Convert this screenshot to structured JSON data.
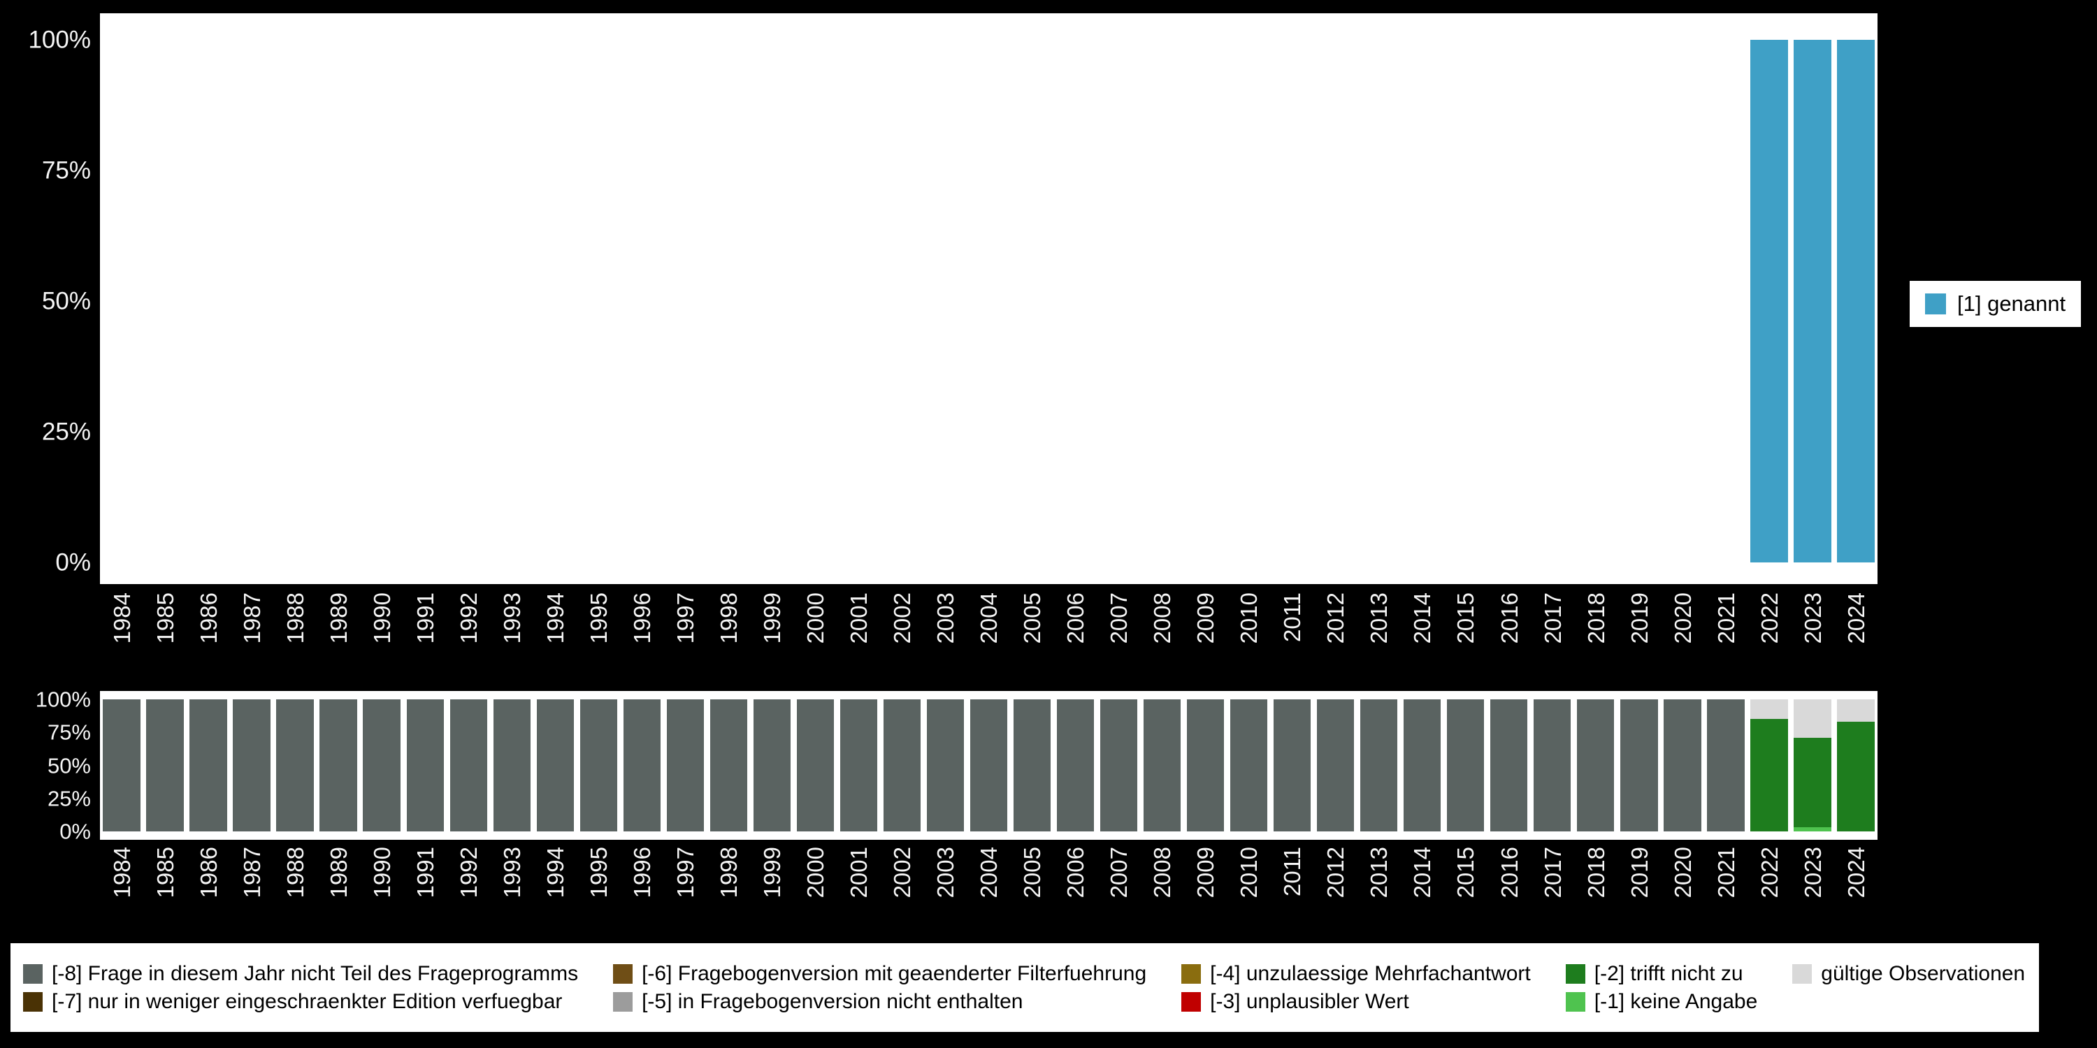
{
  "page": {
    "background": "#000000",
    "panel_background": "#FFFFFF",
    "axis_text_color": "#F5F5F5"
  },
  "chart_data": [
    {
      "type": "bar",
      "stacked": true,
      "unit": "percent",
      "title": "",
      "xlabel": "",
      "ylabel": "",
      "ylim": [
        0,
        100
      ],
      "grid": false,
      "legend_position": "right",
      "yticks": [
        "100%",
        "75%",
        "50%",
        "25%",
        "0%"
      ],
      "x": [
        1984,
        1985,
        1986,
        1987,
        1988,
        1989,
        1990,
        1991,
        1992,
        1993,
        1994,
        1995,
        1996,
        1997,
        1998,
        1999,
        2000,
        2001,
        2002,
        2003,
        2004,
        2005,
        2006,
        2007,
        2008,
        2009,
        2010,
        2011,
        2012,
        2013,
        2014,
        2015,
        2016,
        2017,
        2018,
        2019,
        2020,
        2021,
        2022,
        2023,
        2024
      ],
      "series": [
        {
          "name": "[1] genannt",
          "color": "#3FA0C6",
          "values": [
            0,
            0,
            0,
            0,
            0,
            0,
            0,
            0,
            0,
            0,
            0,
            0,
            0,
            0,
            0,
            0,
            0,
            0,
            0,
            0,
            0,
            0,
            0,
            0,
            0,
            0,
            0,
            0,
            0,
            0,
            0,
            0,
            0,
            0,
            0,
            0,
            0,
            0,
            100,
            100,
            100
          ]
        }
      ]
    },
    {
      "type": "bar",
      "stacked": true,
      "unit": "percent",
      "title": "",
      "xlabel": "",
      "ylabel": "",
      "ylim": [
        0,
        100
      ],
      "grid": false,
      "legend_position": "bottom",
      "yticks": [
        "100%",
        "75%",
        "50%",
        "25%",
        "0%"
      ],
      "x": [
        1984,
        1985,
        1986,
        1987,
        1988,
        1989,
        1990,
        1991,
        1992,
        1993,
        1994,
        1995,
        1996,
        1997,
        1998,
        1999,
        2000,
        2001,
        2002,
        2003,
        2004,
        2005,
        2006,
        2007,
        2008,
        2009,
        2010,
        2011,
        2012,
        2013,
        2014,
        2015,
        2016,
        2017,
        2018,
        2019,
        2020,
        2021,
        2022,
        2023,
        2024
      ],
      "series": [
        {
          "name": "[-8] Frage in diesem Jahr nicht Teil des Frageprogramms",
          "color": "#5A6361",
          "values": [
            100,
            100,
            100,
            100,
            100,
            100,
            100,
            100,
            100,
            100,
            100,
            100,
            100,
            100,
            100,
            100,
            100,
            100,
            100,
            100,
            100,
            100,
            100,
            100,
            100,
            100,
            100,
            100,
            100,
            100,
            100,
            100,
            100,
            100,
            100,
            100,
            100,
            100,
            0,
            0,
            0
          ]
        },
        {
          "name": "[-1] keine Angabe",
          "color": "#4FC34F",
          "values": [
            0,
            0,
            0,
            0,
            0,
            0,
            0,
            0,
            0,
            0,
            0,
            0,
            0,
            0,
            0,
            0,
            0,
            0,
            0,
            0,
            0,
            0,
            0,
            0,
            0,
            0,
            0,
            0,
            0,
            0,
            0,
            0,
            0,
            0,
            0,
            0,
            0,
            0,
            0,
            3,
            0
          ]
        },
        {
          "name": "[-2] trifft nicht zu",
          "color": "#1E7D1E",
          "values": [
            0,
            0,
            0,
            0,
            0,
            0,
            0,
            0,
            0,
            0,
            0,
            0,
            0,
            0,
            0,
            0,
            0,
            0,
            0,
            0,
            0,
            0,
            0,
            0,
            0,
            0,
            0,
            0,
            0,
            0,
            0,
            0,
            0,
            0,
            0,
            0,
            0,
            0,
            85,
            68,
            83
          ]
        },
        {
          "name": "gültige Observationen",
          "color": "#D9D9D9",
          "values": [
            0,
            0,
            0,
            0,
            0,
            0,
            0,
            0,
            0,
            0,
            0,
            0,
            0,
            0,
            0,
            0,
            0,
            0,
            0,
            0,
            0,
            0,
            0,
            0,
            0,
            0,
            0,
            0,
            0,
            0,
            0,
            0,
            0,
            0,
            0,
            0,
            0,
            0,
            15,
            29,
            17
          ]
        }
      ]
    }
  ],
  "legend": {
    "rows": [
      [
        {
          "label": "[-8] Frage in diesem Jahr nicht Teil des Frageprogramms",
          "color": "#5A6361"
        },
        {
          "label": "[-6] Fragebogenversion mit geaenderter Filterfuehrung",
          "color": "#6F4E16"
        },
        {
          "label": "[-4] unzulaessige Mehrfachantwort",
          "color": "#8A6D0F"
        },
        {
          "label": "[-2] trifft nicht zu",
          "color": "#1E7D1E"
        },
        {
          "label": "gültige Observationen",
          "color": "#D9D9D9"
        }
      ],
      [
        {
          "label": "[-7] nur in weniger eingeschraenkter Edition verfuegbar",
          "color": "#4A3205"
        },
        {
          "label": "[-5] in Fragebogenversion nicht enthalten",
          "color": "#9C9C9C"
        },
        {
          "label": "[-3] unplausibler Wert",
          "color": "#C00000"
        },
        {
          "label": "[-1] keine Angabe",
          "color": "#4FC34F"
        }
      ]
    ]
  }
}
